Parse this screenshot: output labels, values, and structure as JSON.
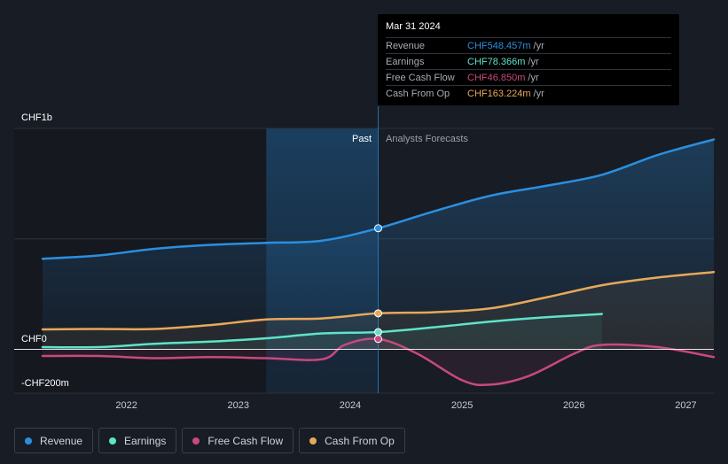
{
  "chart_data": {
    "type": "line",
    "currency": "CHF",
    "y_axis_labels": [
      "CHF1b",
      "CHF0",
      "-CHF200m"
    ],
    "ylim": [
      -200,
      1000
    ],
    "x_ticks": [
      2022,
      2023,
      2024,
      2025,
      2026,
      2027
    ],
    "x_tick_labels": [
      "2022",
      "2023",
      "2024",
      "2025",
      "2026",
      "2027"
    ],
    "xlim": [
      2021.25,
      2027.25
    ],
    "divider_x": 2024.25,
    "past_highlight_start": 2023.25,
    "past_label": "Past",
    "forecast_label": "Analysts Forecasts",
    "series": [
      {
        "name": "Revenue",
        "color": "#2b8fe0",
        "fill": true,
        "points": [
          [
            2021.25,
            410
          ],
          [
            2021.75,
            425
          ],
          [
            2022.25,
            455
          ],
          [
            2022.75,
            473
          ],
          [
            2023.25,
            482
          ],
          [
            2023.75,
            492
          ],
          [
            2024.25,
            548
          ],
          [
            2024.75,
            625
          ],
          [
            2025.25,
            695
          ],
          [
            2025.75,
            740
          ],
          [
            2026.25,
            790
          ],
          [
            2026.75,
            880
          ],
          [
            2027.25,
            950
          ]
        ]
      },
      {
        "name": "Earnings",
        "color": "#5fe3c9",
        "fill": true,
        "points": [
          [
            2021.25,
            10
          ],
          [
            2021.75,
            10
          ],
          [
            2022.25,
            25
          ],
          [
            2022.75,
            35
          ],
          [
            2023.25,
            50
          ],
          [
            2023.75,
            72
          ],
          [
            2024.25,
            78
          ],
          [
            2024.75,
            100
          ],
          [
            2025.25,
            125
          ],
          [
            2025.75,
            145
          ],
          [
            2026.25,
            160
          ]
        ]
      },
      {
        "name": "Free Cash Flow",
        "color": "#c8497f",
        "fill": false,
        "points": [
          [
            2021.25,
            -30
          ],
          [
            2021.75,
            -30
          ],
          [
            2022.25,
            -40
          ],
          [
            2022.75,
            -35
          ],
          [
            2023.25,
            -40
          ],
          [
            2023.75,
            -45
          ],
          [
            2023.95,
            20
          ],
          [
            2024.25,
            47
          ],
          [
            2024.6,
            -20
          ],
          [
            2025.0,
            -140
          ],
          [
            2025.25,
            -160
          ],
          [
            2025.6,
            -120
          ],
          [
            2026.0,
            -20
          ],
          [
            2026.25,
            20
          ],
          [
            2026.75,
            10
          ],
          [
            2027.25,
            -35
          ]
        ]
      },
      {
        "name": "Cash From Op",
        "color": "#e8a85a",
        "fill": true,
        "points": [
          [
            2021.25,
            90
          ],
          [
            2021.75,
            92
          ],
          [
            2022.25,
            92
          ],
          [
            2022.75,
            110
          ],
          [
            2023.25,
            135
          ],
          [
            2023.75,
            140
          ],
          [
            2024.25,
            163
          ],
          [
            2024.75,
            168
          ],
          [
            2025.25,
            185
          ],
          [
            2025.75,
            235
          ],
          [
            2026.25,
            290
          ],
          [
            2026.75,
            325
          ],
          [
            2027.25,
            350
          ]
        ]
      }
    ]
  },
  "tooltip": {
    "date": "Mar 31 2024",
    "rows": [
      {
        "label": "Revenue",
        "value": "CHF548.457m",
        "unit": "/yr",
        "color": "#2b8fe0"
      },
      {
        "label": "Earnings",
        "value": "CHF78.366m",
        "unit": "/yr",
        "color": "#5fe3c9"
      },
      {
        "label": "Free Cash Flow",
        "value": "CHF46.850m",
        "unit": "/yr",
        "color": "#c8497f"
      },
      {
        "label": "Cash From Op",
        "value": "CHF163.224m",
        "unit": "/yr",
        "color": "#e8a85a"
      }
    ]
  },
  "legend": [
    {
      "label": "Revenue",
      "color": "#2b8fe0"
    },
    {
      "label": "Earnings",
      "color": "#5fe3c9"
    },
    {
      "label": "Free Cash Flow",
      "color": "#c8497f"
    },
    {
      "label": "Cash From Op",
      "color": "#e8a85a"
    }
  ]
}
